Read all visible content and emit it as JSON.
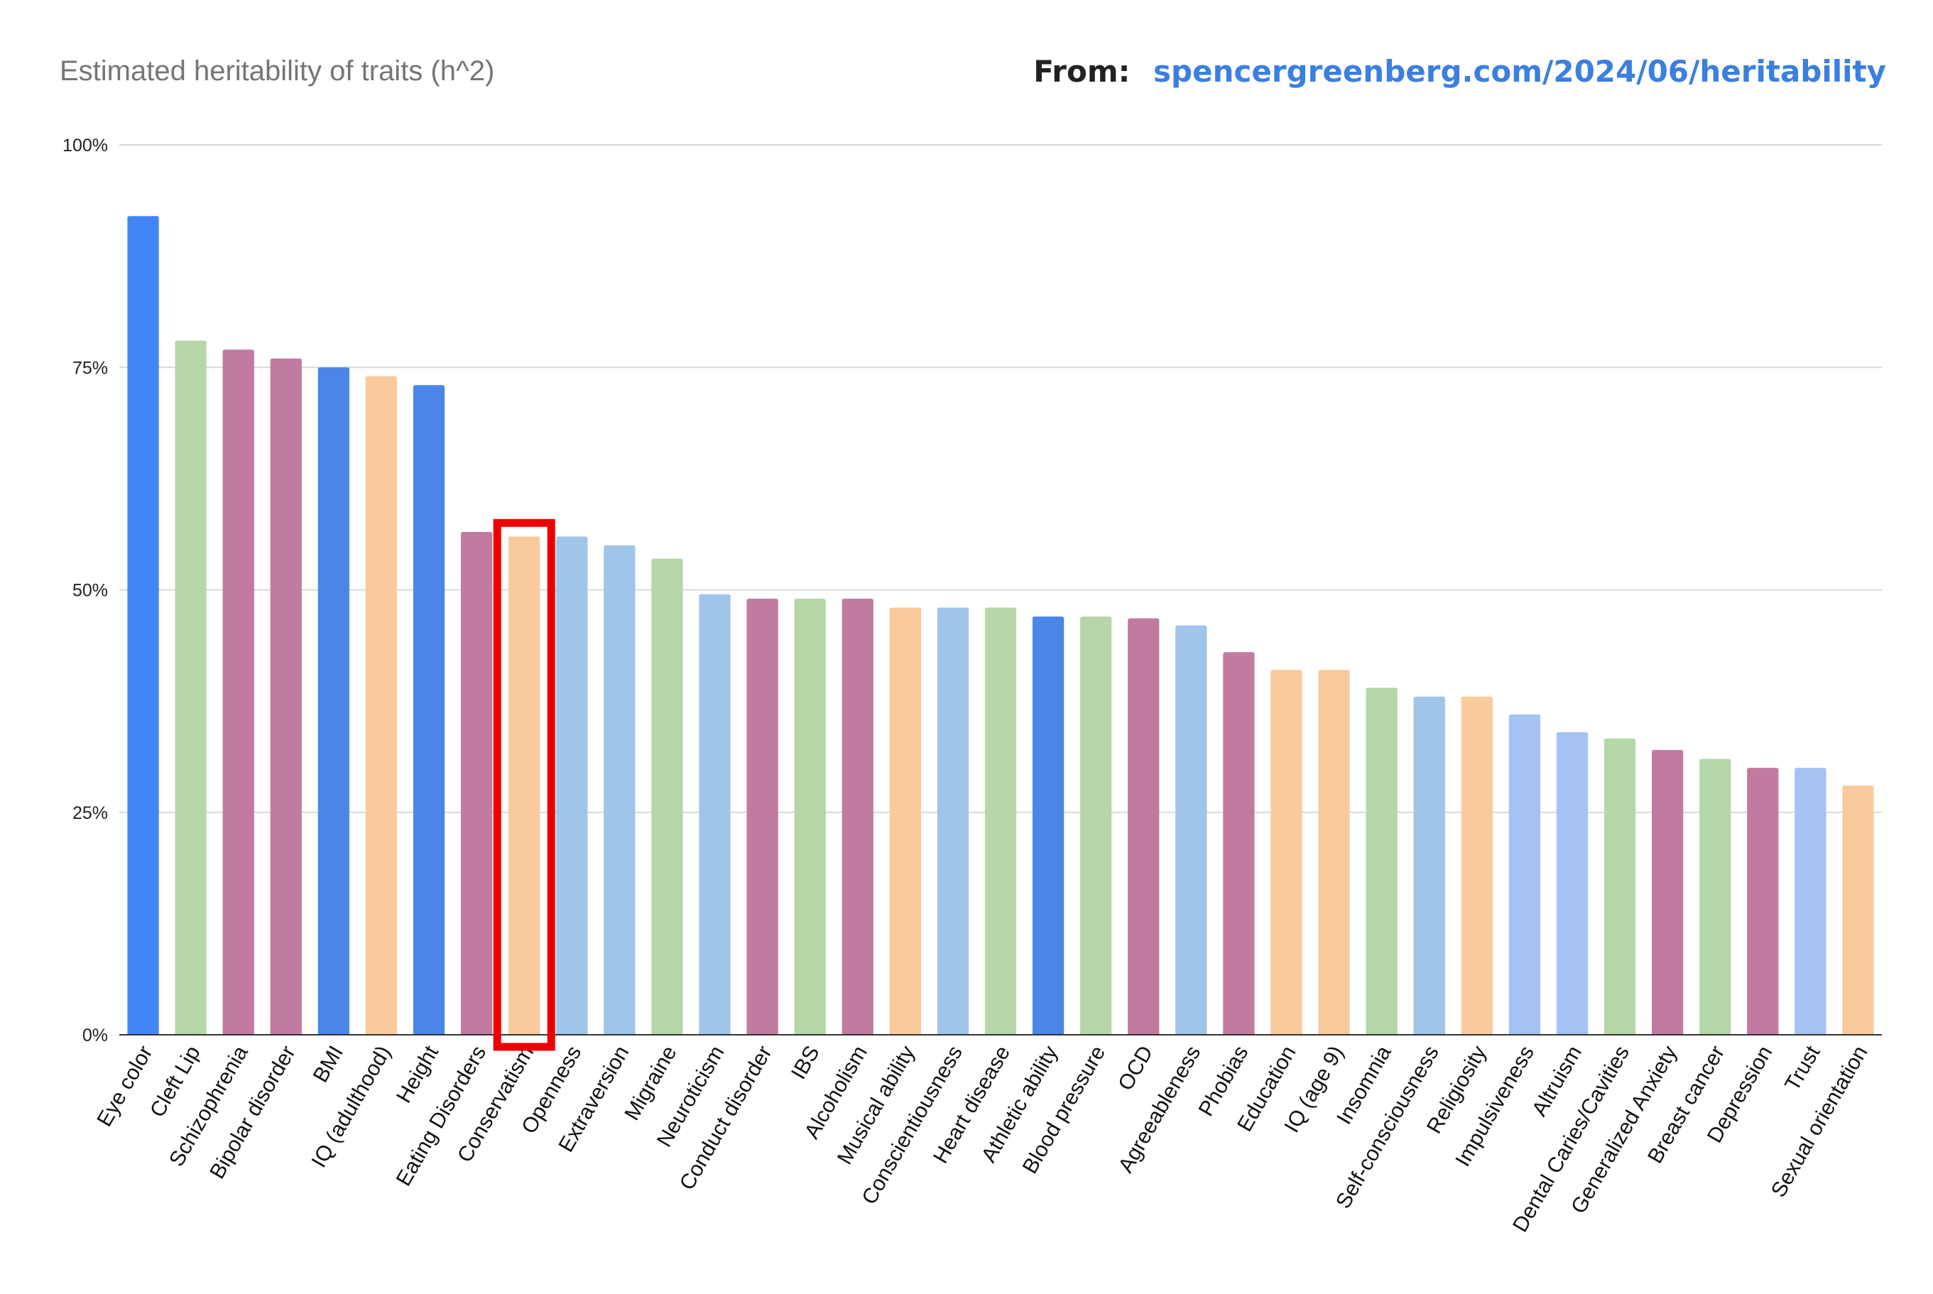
{
  "header": {
    "title": "Estimated heritability of traits (h^2)",
    "source_prefix": "From:",
    "source_url": "spencergreenberg.com/2024/06/heritability"
  },
  "colors": {
    "highlight_box": "#ee0000",
    "gridline": "#d9d9d9",
    "axis": "#333333"
  },
  "chart_data": {
    "type": "bar",
    "title": "Estimated heritability of traits (h^2)",
    "xlabel": "",
    "ylabel": "",
    "ylim": [
      0,
      100
    ],
    "yticks": [
      "0%",
      "25%",
      "50%",
      "75%",
      "100%"
    ],
    "grid": true,
    "legend": "none",
    "highlighted_category": "Conservatism",
    "categories": [
      "Eye color",
      "Cleft Lip",
      "Schizophrenia",
      "Bipolar disorder",
      "BMI",
      "IQ (adulthood)",
      "Height",
      "Eating Disorders",
      "Conservatism",
      "Openness",
      "Extraversion",
      "Migraine",
      "Neuroticism",
      "Conduct disorder",
      "IBS",
      "Alcoholism",
      "Musical ability",
      "Conscientiousness",
      "Heart disease",
      "Athletic ability",
      "Blood pressure",
      "OCD",
      "Agreeableness",
      "Phobias",
      "Education",
      "IQ (age 9)",
      "Insomnia",
      "Self-consciousness",
      "Religiosity",
      "Impulsiveness",
      "Altruism",
      "Dental Caries/Cavities",
      "Generalized Anxiety",
      "Breast cancer",
      "Depression",
      "Trust",
      "Sexual orientation"
    ],
    "values": [
      92,
      78,
      77,
      76,
      75,
      74,
      73,
      56.5,
      56,
      56,
      55,
      53.5,
      49.5,
      49,
      49,
      49,
      48,
      48,
      48,
      47,
      47,
      46.8,
      46,
      43,
      41,
      41,
      39,
      38,
      38,
      36,
      34,
      33.3,
      32,
      31,
      30,
      30,
      28
    ],
    "bar_colors": [
      "#4285f4",
      "#b6d7a8",
      "#c27ba0",
      "#c27ba0",
      "#4a86e8",
      "#f9cb9c",
      "#4a86e8",
      "#c27ba0",
      "#f9cb9c",
      "#9fc5e8",
      "#9fc5e8",
      "#b6d7a8",
      "#9fc5e8",
      "#c27ba0",
      "#b6d7a8",
      "#c27ba0",
      "#f9cb9c",
      "#9fc5e8",
      "#b6d7a8",
      "#4a86e8",
      "#b6d7a8",
      "#c27ba0",
      "#9fc5e8",
      "#c27ba0",
      "#f9cb9c",
      "#f9cb9c",
      "#b6d7a8",
      "#9fc5e8",
      "#f9cb9c",
      "#a4c2f4",
      "#a4c2f4",
      "#b6d7a8",
      "#c27ba0",
      "#b6d7a8",
      "#c27ba0",
      "#a4c2f4",
      "#f9cb9c"
    ]
  }
}
